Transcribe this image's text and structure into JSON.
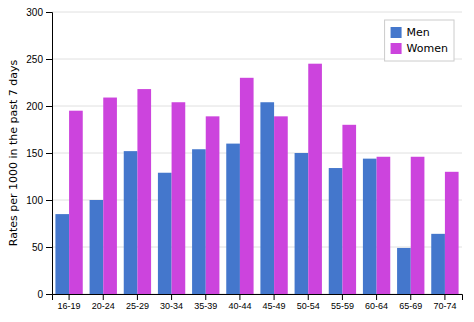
{
  "chart_data": {
    "type": "bar",
    "categories": [
      "16-19",
      "20-24",
      "25-29",
      "30-34",
      "35-39",
      "40-44",
      "45-49",
      "50-54",
      "55-59",
      "60-64",
      "65-69",
      "70-74"
    ],
    "series": [
      {
        "name": "Men",
        "color": "#4477cc",
        "values": [
          85,
          100,
          152,
          129,
          154,
          160,
          204,
          150,
          134,
          144,
          49,
          64
        ]
      },
      {
        "name": "Women",
        "color": "#cc44dd",
        "values": [
          195,
          209,
          218,
          204,
          189,
          230,
          189,
          245,
          180,
          146,
          146,
          130
        ]
      }
    ],
    "ylabel": "Rates per 1000 in the past 7 days",
    "ylim": [
      0,
      300
    ],
    "yticks": [
      0,
      50,
      100,
      150,
      200,
      250,
      300
    ],
    "grid": true,
    "legend": "upper right"
  }
}
